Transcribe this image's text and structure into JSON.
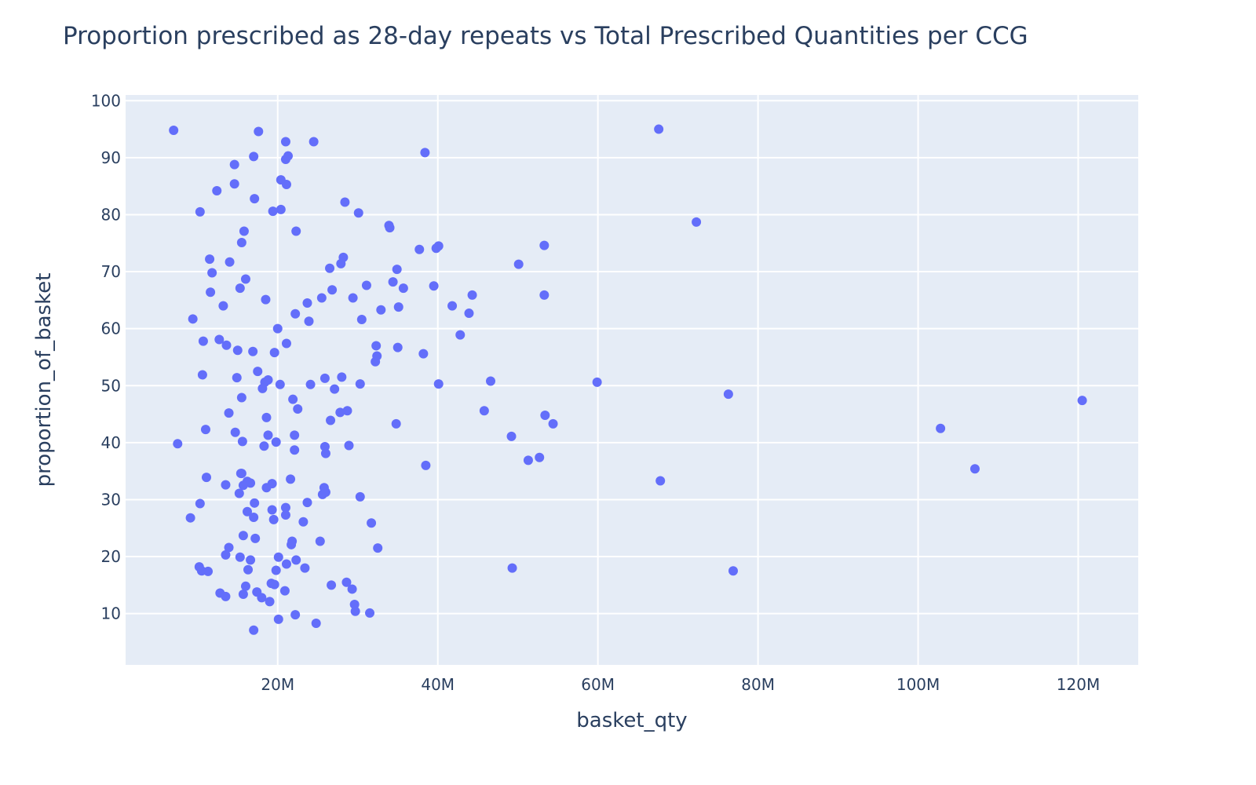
{
  "chart_data": {
    "type": "scatter",
    "title": "Proportion prescribed as 28-day repeats vs Total Prescribed Quantities per CCG",
    "xlabel": "basket_qty",
    "ylabel": "proportion_of_basket",
    "xlim": [
      1000000,
      127500000
    ],
    "ylim": [
      1,
      101
    ],
    "x_ticks": [
      20000000,
      40000000,
      60000000,
      80000000,
      100000000,
      120000000
    ],
    "x_tick_labels": [
      "20M",
      "40M",
      "60M",
      "80M",
      "100M",
      "120M"
    ],
    "y_ticks": [
      10,
      20,
      30,
      40,
      50,
      60,
      70,
      80,
      90,
      100
    ],
    "y_tick_labels": [
      "10",
      "20",
      "30",
      "40",
      "50",
      "60",
      "70",
      "80",
      "90",
      "100"
    ],
    "grid": true,
    "colors": {
      "marker": "#636efa",
      "plot_bg": "#e5ecf6",
      "grid": "#ffffff",
      "text": "#2a3f5f"
    },
    "points": [
      [
        7.0,
        94.8
      ],
      [
        17.6,
        94.6
      ],
      [
        21.0,
        92.8
      ],
      [
        24.5,
        92.8
      ],
      [
        21.3,
        90.3
      ],
      [
        21.0,
        89.7
      ],
      [
        17.0,
        90.2
      ],
      [
        38.4,
        90.9
      ],
      [
        14.6,
        88.8
      ],
      [
        20.4,
        86.1
      ],
      [
        14.6,
        85.4
      ],
      [
        21.1,
        85.3
      ],
      [
        12.4,
        84.2
      ],
      [
        17.1,
        82.8
      ],
      [
        28.4,
        82.2
      ],
      [
        10.3,
        80.5
      ],
      [
        19.4,
        80.6
      ],
      [
        20.4,
        80.9
      ],
      [
        30.1,
        80.3
      ],
      [
        15.8,
        77.1
      ],
      [
        22.3,
        77.1
      ],
      [
        33.9,
        78.1
      ],
      [
        34.0,
        77.7
      ],
      [
        15.5,
        75.1
      ],
      [
        37.7,
        73.9
      ],
      [
        39.8,
        74.1
      ],
      [
        40.1,
        74.5
      ],
      [
        53.3,
        74.6
      ],
      [
        11.5,
        72.2
      ],
      [
        14.0,
        71.7
      ],
      [
        28.2,
        72.5
      ],
      [
        27.9,
        71.4
      ],
      [
        26.5,
        70.6
      ],
      [
        34.9,
        70.4
      ],
      [
        11.8,
        69.8
      ],
      [
        16.0,
        68.7
      ],
      [
        31.1,
        67.6
      ],
      [
        34.4,
        68.2
      ],
      [
        35.7,
        67.1
      ],
      [
        39.5,
        67.5
      ],
      [
        50.1,
        71.3
      ],
      [
        15.3,
        67.1
      ],
      [
        11.6,
        66.4
      ],
      [
        26.8,
        66.8
      ],
      [
        25.5,
        65.4
      ],
      [
        18.5,
        65.1
      ],
      [
        29.4,
        65.4
      ],
      [
        44.3,
        65.9
      ],
      [
        53.3,
        65.9
      ],
      [
        13.2,
        64.0
      ],
      [
        23.7,
        64.5
      ],
      [
        41.8,
        64.0
      ],
      [
        35.1,
        63.8
      ],
      [
        32.9,
        63.3
      ],
      [
        22.2,
        62.6
      ],
      [
        43.9,
        62.7
      ],
      [
        9.4,
        61.7
      ],
      [
        23.9,
        61.3
      ],
      [
        30.5,
        61.6
      ],
      [
        20.0,
        60.0
      ],
      [
        42.8,
        58.9
      ],
      [
        10.7,
        57.8
      ],
      [
        12.7,
        58.1
      ],
      [
        13.6,
        57.1
      ],
      [
        21.1,
        57.4
      ],
      [
        32.3,
        57.0
      ],
      [
        35.0,
        56.7
      ],
      [
        15.0,
        56.2
      ],
      [
        16.9,
        56.0
      ],
      [
        19.6,
        55.8
      ],
      [
        32.4,
        55.2
      ],
      [
        38.2,
        55.6
      ],
      [
        32.2,
        54.2
      ],
      [
        10.6,
        51.9
      ],
      [
        17.5,
        52.5
      ],
      [
        14.9,
        51.4
      ],
      [
        18.4,
        50.6
      ],
      [
        18.8,
        51.0
      ],
      [
        20.3,
        50.2
      ],
      [
        24.1,
        50.2
      ],
      [
        25.9,
        51.3
      ],
      [
        28.0,
        51.5
      ],
      [
        30.3,
        50.3
      ],
      [
        40.1,
        50.3
      ],
      [
        46.6,
        50.8
      ],
      [
        59.9,
        50.6
      ],
      [
        18.1,
        49.5
      ],
      [
        27.1,
        49.4
      ],
      [
        15.5,
        47.9
      ],
      [
        21.9,
        47.6
      ],
      [
        76.3,
        48.5
      ],
      [
        120.5,
        47.4
      ],
      [
        22.5,
        45.9
      ],
      [
        13.9,
        45.2
      ],
      [
        27.8,
        45.3
      ],
      [
        28.7,
        45.6
      ],
      [
        45.8,
        45.6
      ],
      [
        53.4,
        44.8
      ],
      [
        54.4,
        43.3
      ],
      [
        18.6,
        44.4
      ],
      [
        26.6,
        43.9
      ],
      [
        34.8,
        43.3
      ],
      [
        11.0,
        42.3
      ],
      [
        102.8,
        42.5
      ],
      [
        14.7,
        41.8
      ],
      [
        18.8,
        41.3
      ],
      [
        22.1,
        41.3
      ],
      [
        49.2,
        41.1
      ],
      [
        7.5,
        39.8
      ],
      [
        15.6,
        40.2
      ],
      [
        19.8,
        40.1
      ],
      [
        18.3,
        39.4
      ],
      [
        25.9,
        39.3
      ],
      [
        28.9,
        39.5
      ],
      [
        22.1,
        38.7
      ],
      [
        26.0,
        38.1
      ],
      [
        52.7,
        37.4
      ],
      [
        51.3,
        36.9
      ],
      [
        38.5,
        36.0
      ],
      [
        107.1,
        35.4
      ],
      [
        15.4,
        34.6
      ],
      [
        15.5,
        34.6
      ],
      [
        11.1,
        33.9
      ],
      [
        21.6,
        33.6
      ],
      [
        16.2,
        33.2
      ],
      [
        16.6,
        32.9
      ],
      [
        19.3,
        32.8
      ],
      [
        67.8,
        33.3
      ],
      [
        13.5,
        32.6
      ],
      [
        15.7,
        32.5
      ],
      [
        18.6,
        32.1
      ],
      [
        25.8,
        32.1
      ],
      [
        15.2,
        31.1
      ],
      [
        25.6,
        30.9
      ],
      [
        26.0,
        31.3
      ],
      [
        30.3,
        30.5
      ],
      [
        10.3,
        29.3
      ],
      [
        17.1,
        29.4
      ],
      [
        23.7,
        29.5
      ],
      [
        21.0,
        28.6
      ],
      [
        16.2,
        27.9
      ],
      [
        19.3,
        28.2
      ],
      [
        21.0,
        27.3
      ],
      [
        9.1,
        26.8
      ],
      [
        17.0,
        26.9
      ],
      [
        19.5,
        26.5
      ],
      [
        23.2,
        26.1
      ],
      [
        31.7,
        25.9
      ],
      [
        15.7,
        23.7
      ],
      [
        17.2,
        23.2
      ],
      [
        21.8,
        22.7
      ],
      [
        25.3,
        22.7
      ],
      [
        21.7,
        22.1
      ],
      [
        32.5,
        21.5
      ],
      [
        13.9,
        21.6
      ],
      [
        13.5,
        20.3
      ],
      [
        15.3,
        19.9
      ],
      [
        16.6,
        19.4
      ],
      [
        20.1,
        19.9
      ],
      [
        22.3,
        19.4
      ],
      [
        21.1,
        18.7
      ],
      [
        10.2,
        18.2
      ],
      [
        10.5,
        17.5
      ],
      [
        11.3,
        17.4
      ],
      [
        16.3,
        17.7
      ],
      [
        19.8,
        17.6
      ],
      [
        23.4,
        18.0
      ],
      [
        49.3,
        18.0
      ],
      [
        76.9,
        17.5
      ],
      [
        19.2,
        15.3
      ],
      [
        19.6,
        15.1
      ],
      [
        16.0,
        14.8
      ],
      [
        26.7,
        15.0
      ],
      [
        28.6,
        15.5
      ],
      [
        29.3,
        14.3
      ],
      [
        12.8,
        13.6
      ],
      [
        13.5,
        13.0
      ],
      [
        15.7,
        13.4
      ],
      [
        17.4,
        13.8
      ],
      [
        18.0,
        12.8
      ],
      [
        19.0,
        12.1
      ],
      [
        20.9,
        14.0
      ],
      [
        29.6,
        11.6
      ],
      [
        29.7,
        10.4
      ],
      [
        31.5,
        10.1
      ],
      [
        22.2,
        9.8
      ],
      [
        20.1,
        9.0
      ],
      [
        24.8,
        8.3
      ],
      [
        17.0,
        7.1
      ],
      [
        67.6,
        95.0
      ],
      [
        72.3,
        78.7
      ]
    ]
  }
}
